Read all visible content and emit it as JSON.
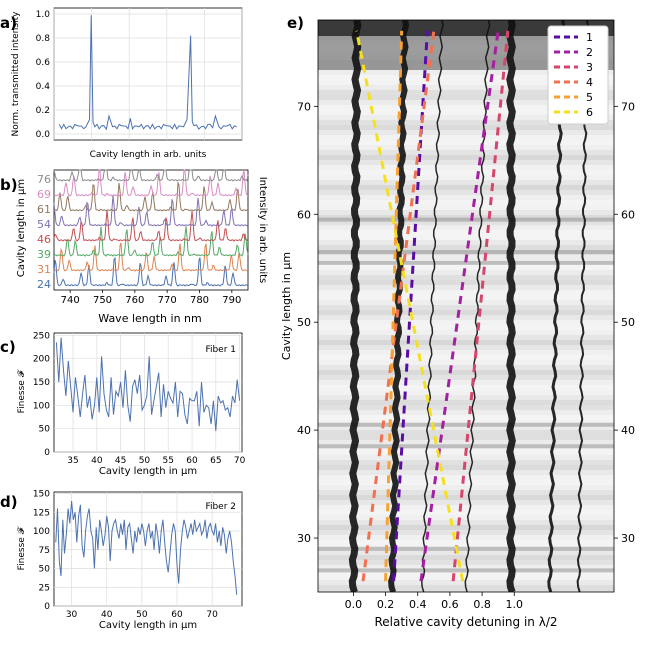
{
  "panels": {
    "a": {
      "tag": "a)"
    },
    "b": {
      "tag": "b)"
    },
    "c": {
      "tag": "c)"
    },
    "d": {
      "tag": "d)"
    },
    "e": {
      "tag": "e)"
    }
  },
  "chart_data": [
    {
      "id": "a",
      "type": "line",
      "xlabel": "Cavity length in arb. units",
      "ylabel": "Norm. transmitted intensity",
      "ylim": [
        0,
        1.05
      ],
      "yticks": [
        "0.0",
        "0.2",
        "0.4",
        "0.6",
        "0.8",
        "1.0"
      ],
      "grid": true,
      "series": [
        {
          "color": "#4c72b0",
          "x": [
            0,
            0.05,
            0.1,
            0.15,
            0.17,
            0.18,
            0.19,
            0.2,
            0.25,
            0.28,
            0.3,
            0.35,
            0.4,
            0.45,
            0.5,
            0.55,
            0.6,
            0.65,
            0.7,
            0.72,
            0.74,
            0.75,
            0.76,
            0.8,
            0.85,
            0.88,
            0.9,
            0.95,
            1.0
          ],
          "y": [
            0.08,
            0.06,
            0.07,
            0.06,
            0.12,
            0.99,
            0.1,
            0.06,
            0.07,
            0.15,
            0.06,
            0.07,
            0.13,
            0.06,
            0.07,
            0.06,
            0.07,
            0.08,
            0.06,
            0.12,
            0.82,
            0.1,
            0.07,
            0.06,
            0.08,
            0.15,
            0.06,
            0.07,
            0.06
          ]
        }
      ]
    },
    {
      "id": "b",
      "type": "line",
      "xlabel": "Wave length in nm",
      "ylabel": "Cavity length in μm",
      "ylabel_right": "Intensity in arb. units",
      "xlim": [
        735,
        795
      ],
      "xticks": [
        740,
        750,
        760,
        770,
        780,
        790
      ],
      "rows": [
        {
          "label": "24",
          "color": "#4c72b0"
        },
        {
          "label": "31",
          "color": "#dd8452"
        },
        {
          "label": "39",
          "color": "#55a868"
        },
        {
          "label": "46",
          "color": "#c44e52"
        },
        {
          "label": "54",
          "color": "#8172b3"
        },
        {
          "label": "61",
          "color": "#937860"
        },
        {
          "label": "69",
          "color": "#da8bc3"
        },
        {
          "label": "76",
          "color": "#8c8c8c"
        }
      ]
    },
    {
      "id": "c",
      "type": "line",
      "annotation": "Fiber 1",
      "xlabel": "Cavity length in  μm",
      "ylabel": "Finesse 𝓕",
      "xlim": [
        31,
        70.5
      ],
      "ylim": [
        0,
        255
      ],
      "xticks": [
        35,
        40,
        45,
        50,
        55,
        60,
        65,
        70
      ],
      "yticks": [
        0,
        50,
        100,
        150,
        200,
        250
      ],
      "grid": true,
      "series": [
        {
          "color": "#4c72b0",
          "x": [
            31.5,
            32,
            32.5,
            33,
            33.5,
            34,
            34.5,
            35,
            35.5,
            36,
            36.5,
            37,
            37.5,
            38,
            38.5,
            39,
            39.5,
            40,
            40.5,
            41,
            41.5,
            42,
            42.5,
            43,
            43.5,
            44,
            44.5,
            45,
            45.5,
            46,
            46.5,
            47,
            47.5,
            48,
            48.5,
            49,
            49.5,
            50,
            50.5,
            51,
            51.5,
            52,
            52.5,
            53,
            53.5,
            54,
            54.5,
            55,
            55.5,
            56,
            56.5,
            57,
            57.5,
            58,
            58.5,
            59,
            59.5,
            60,
            60.5,
            61,
            61.5,
            62,
            62.5,
            63,
            63.5,
            64,
            64.5,
            65,
            65.5,
            66,
            66.5,
            67,
            67.5,
            68,
            68.5,
            69,
            69.5,
            70
          ],
          "y": [
            235,
            150,
            245,
            175,
            120,
            195,
            140,
            85,
            160,
            120,
            75,
            125,
            165,
            95,
            120,
            70,
            100,
            160,
            85,
            205,
            125,
            90,
            75,
            160,
            80,
            130,
            120,
            150,
            95,
            175,
            100,
            65,
            140,
            155,
            125,
            165,
            90,
            100,
            120,
            205,
            80,
            110,
            140,
            170,
            75,
            145,
            95,
            130,
            115,
            105,
            150,
            75,
            130,
            125,
            80,
            60,
            115,
            110,
            110,
            130,
            55,
            150,
            85,
            100,
            95,
            60,
            110,
            45,
            120,
            105,
            110,
            90,
            95,
            75,
            120,
            105,
            155,
            110
          ]
        }
      ]
    },
    {
      "id": "d",
      "type": "line",
      "annotation": "Fiber 2",
      "xlabel": "Cavity length in  μm",
      "ylabel": "Finesse 𝓕",
      "xlim": [
        25,
        78.5
      ],
      "ylim": [
        0,
        152
      ],
      "xticks": [
        30,
        40,
        50,
        60,
        70
      ],
      "yticks": [
        0,
        25,
        50,
        75,
        100,
        125,
        150
      ],
      "grid": true,
      "series": [
        {
          "color": "#4c72b0",
          "x": [
            25.5,
            26,
            26.5,
            27,
            27.5,
            28,
            28.5,
            29,
            29.5,
            30,
            30.5,
            31,
            31.5,
            32,
            32.5,
            33,
            33.5,
            34,
            34.5,
            35,
            35.5,
            36,
            36.5,
            37,
            37.5,
            38,
            38.5,
            39,
            39.5,
            40,
            40.5,
            41,
            41.5,
            42,
            42.5,
            43,
            43.5,
            44,
            44.5,
            45,
            45.5,
            46,
            46.5,
            47,
            47.5,
            48,
            48.5,
            49,
            49.5,
            50,
            50.5,
            51,
            51.5,
            52,
            52.5,
            53,
            53.5,
            54,
            54.5,
            55,
            55.5,
            56,
            56.5,
            57,
            57.5,
            58,
            58.5,
            59,
            59.5,
            60,
            60.5,
            61,
            61.5,
            62,
            62.5,
            63,
            63.5,
            64,
            64.5,
            65,
            65.5,
            66,
            66.5,
            67,
            67.5,
            68,
            68.5,
            69,
            69.5,
            70,
            70.5,
            71,
            71.5,
            72,
            72.5,
            73,
            73.5,
            74,
            74.5,
            75,
            75.5,
            76,
            76.5,
            77
          ],
          "y": [
            85,
            130,
            60,
            40,
            115,
            70,
            95,
            130,
            110,
            140,
            115,
            125,
            85,
            120,
            135,
            80,
            65,
            100,
            120,
            130,
            100,
            90,
            50,
            105,
            75,
            115,
            100,
            80,
            95,
            120,
            105,
            60,
            100,
            110,
            115,
            100,
            90,
            110,
            95,
            115,
            75,
            105,
            110,
            90,
            70,
            100,
            85,
            105,
            95,
            110,
            100,
            80,
            100,
            110,
            90,
            100,
            75,
            110,
            95,
            70,
            100,
            115,
            85,
            60,
            45,
            70,
            95,
            110,
            100,
            55,
            30,
            75,
            100,
            115,
            105,
            90,
            100,
            110,
            95,
            115,
            100,
            105,
            110,
            95,
            100,
            115,
            90,
            105,
            110,
            100,
            95,
            110,
            85,
            100,
            80,
            105,
            95,
            70,
            90,
            100,
            85,
            60,
            40,
            15
          ]
        }
      ]
    },
    {
      "id": "e",
      "type": "heatmap",
      "xlabel": "Relative cavity detuning in λ/2",
      "ylabel": "Cavity length in μm",
      "xlim": [
        -0.22,
        1.62
      ],
      "ylim": [
        25,
        78
      ],
      "xticks": [
        "0.0",
        "0.2",
        "0.4",
        "0.6",
        "0.8",
        "1.0"
      ],
      "xtick_values": [
        0,
        0.2,
        0.4,
        0.6,
        0.8,
        1.0
      ],
      "yticks": [
        30,
        40,
        50,
        60,
        70
      ],
      "legend_position": "top-right",
      "modes": [
        {
          "label": "1",
          "color": "#5a0da5",
          "x": [
            0.25,
            0.46
          ],
          "y": [
            26,
            77
          ]
        },
        {
          "label": "2",
          "color": "#a520a0",
          "x": [
            0.42,
            0.9
          ],
          "y": [
            26,
            77
          ]
        },
        {
          "label": "3",
          "color": "#d6456b",
          "x": [
            0.62,
            0.96
          ],
          "y": [
            26,
            77
          ]
        },
        {
          "label": "4",
          "color": "#f07050",
          "x": [
            0.06,
            0.5
          ],
          "y": [
            26,
            77
          ]
        },
        {
          "label": "5",
          "color": "#f8a030",
          "x": [
            0.2,
            0.3
          ],
          "y": [
            26,
            77
          ]
        },
        {
          "label": "6",
          "color": "#f5e020",
          "x": [
            0.68,
            0.02
          ],
          "y": [
            26,
            77
          ]
        }
      ]
    }
  ]
}
